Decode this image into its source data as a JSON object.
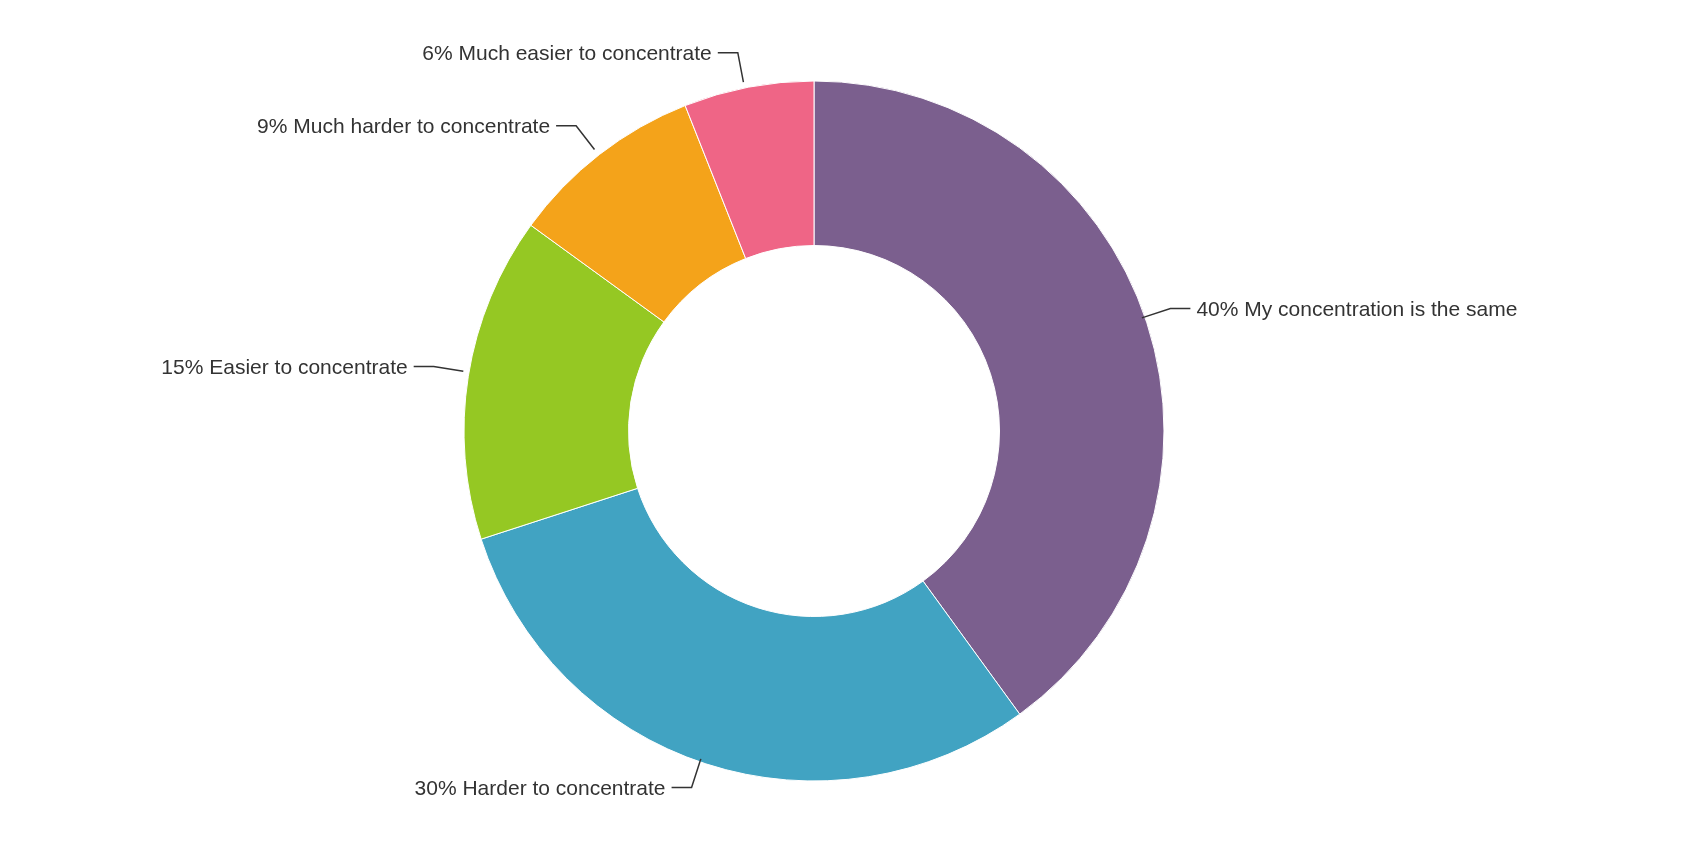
{
  "chart_data": {
    "type": "donut",
    "categories": [
      "My concentration is the same",
      "Harder to concentrate",
      "Easier to concentrate",
      "Much harder to concentrate",
      "Much easier to concentrate"
    ],
    "values": [
      40,
      30,
      15,
      9,
      6
    ],
    "value_labels": [
      "40%",
      "30%",
      "15%",
      "9%",
      "6%"
    ],
    "colors": [
      "#7b5f8e",
      "#41a3c2",
      "#95c823",
      "#f4a31a",
      "#ef6586"
    ]
  }
}
